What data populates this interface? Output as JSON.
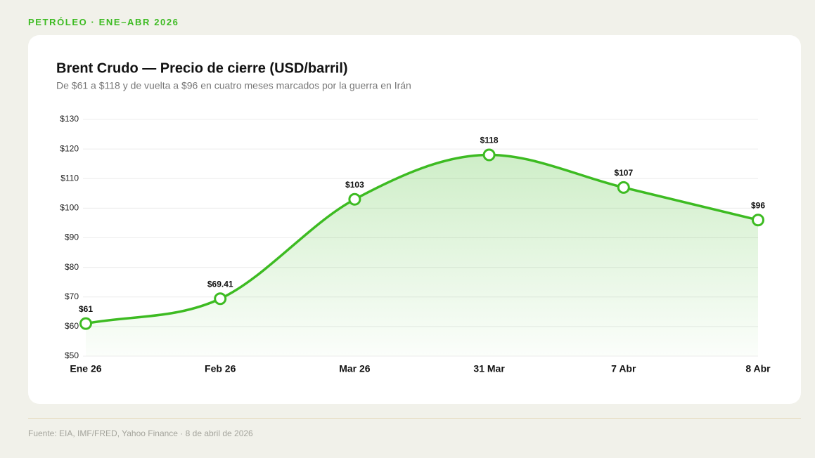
{
  "eyebrow": "PETRÓLEO · ENE–ABR 2026",
  "chart_data": {
    "type": "line",
    "title": "Brent Crudo — Precio de cierre (USD/barril)",
    "subtitle": "De $61 a $118 y de vuelta a $96 en cuatro meses marcados por la guerra en Irán",
    "categories": [
      "Ene 26",
      "Feb 26",
      "Mar 26",
      "31 Mar",
      "7 Abr",
      "8 Abr"
    ],
    "values": [
      61,
      69.41,
      103,
      118,
      107,
      96
    ],
    "value_labels": [
      "$61",
      "$69.41",
      "$103",
      "$118",
      "$107",
      "$96"
    ],
    "color": "#3dbb22",
    "ylim": [
      50,
      130
    ],
    "yticks": [
      {
        "value": 50,
        "label": "$50"
      },
      {
        "value": 60,
        "label": "$60"
      },
      {
        "value": 70,
        "label": "$70"
      },
      {
        "value": 80,
        "label": "$80"
      },
      {
        "value": 90,
        "label": "$90"
      },
      {
        "value": 100,
        "label": "$100"
      },
      {
        "value": 110,
        "label": "$110"
      },
      {
        "value": 120,
        "label": "$120"
      },
      {
        "value": 130,
        "label": "$130"
      }
    ],
    "grid": true
  },
  "footer": "Fuente: EIA, IMF/FRED, Yahoo Finance · 8 de abril de 2026"
}
